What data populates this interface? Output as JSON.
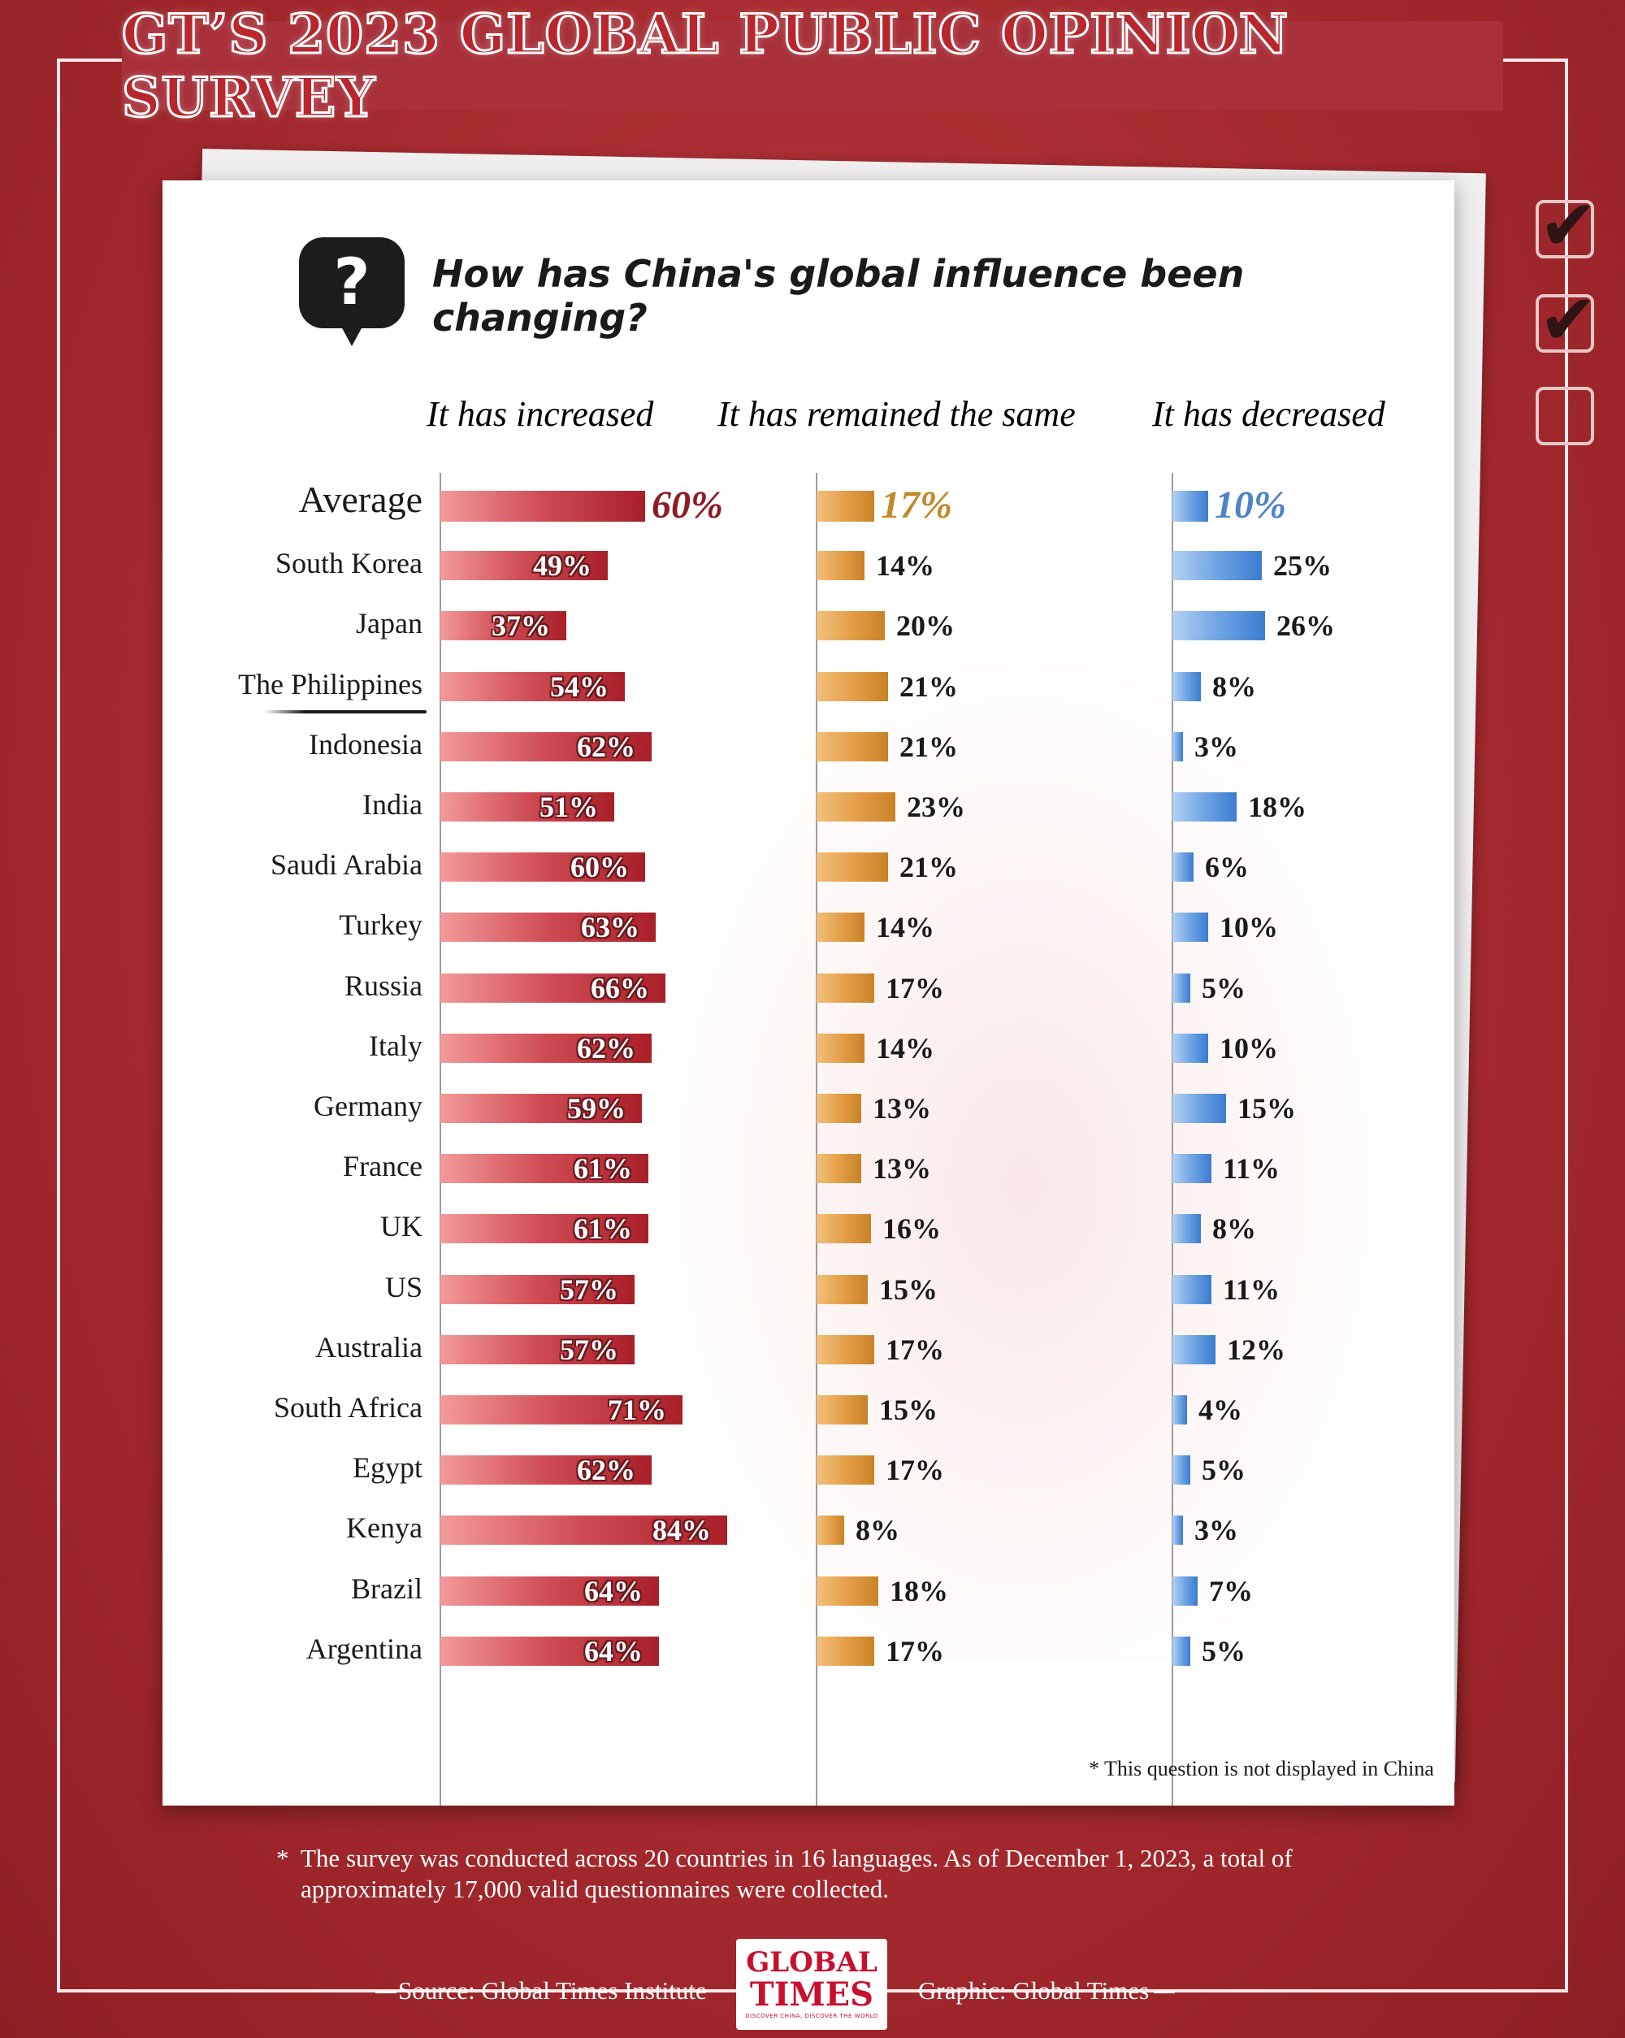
{
  "header": {
    "title": "GT’S 2023 GLOBAL PUBLIC OPINION SURVEY"
  },
  "question": {
    "icon": "question-mark-icon",
    "text": "How has China's global influence been changing?"
  },
  "checklist": [
    {
      "icon": "checked-box-icon",
      "checked": true,
      "glyph": "✔"
    },
    {
      "icon": "checked-box-icon",
      "checked": true,
      "glyph": "✔"
    },
    {
      "icon": "empty-box-icon",
      "checked": false,
      "glyph": ""
    }
  ],
  "columns": [
    {
      "key": "increased",
      "label": "It has increased",
      "color": "#b8262e"
    },
    {
      "key": "same",
      "label": "It has remained the same",
      "color": "#c08a2a"
    },
    {
      "key": "decreased",
      "label": "It has decreased",
      "color": "#5b8fd6"
    }
  ],
  "chart_data": {
    "type": "bar",
    "orientation": "horizontal",
    "unit": "%",
    "categories": [
      "Average",
      "South Korea",
      "Japan",
      "The Philippines",
      "Indonesia",
      "India",
      "Saudi Arabia",
      "Turkey",
      "Russia",
      "Italy",
      "Germany",
      "France",
      "UK",
      "US",
      "Australia",
      "South Africa",
      "Egypt",
      "Kenya",
      "Brazil",
      "Argentina"
    ],
    "series": [
      {
        "name": "It has increased",
        "values": [
          60,
          49,
          37,
          54,
          62,
          51,
          60,
          63,
          66,
          62,
          59,
          61,
          61,
          57,
          57,
          71,
          62,
          84,
          64,
          64
        ],
        "labels": [
          "60%",
          "49%",
          "37%",
          "54%",
          "62%",
          "51%",
          "60%",
          "63%",
          "66%",
          "62%",
          "59%",
          "61%",
          "61%",
          "57%",
          "57%",
          "71%",
          "62%",
          "84%",
          "64%",
          "64%"
        ]
      },
      {
        "name": "It has remained the same",
        "values": [
          17,
          14,
          20,
          21,
          21,
          23,
          21,
          14,
          17,
          14,
          13,
          13,
          16,
          15,
          17,
          15,
          17,
          8,
          18,
          17
        ],
        "labels": [
          "17%",
          "14%",
          "20%",
          "21%",
          "21%",
          "23%",
          "21%",
          "14%",
          "17%",
          "14%",
          "13%",
          "13%",
          "16%",
          "15%",
          "17%",
          "15%",
          "17%",
          "8%",
          "18%",
          "17%"
        ]
      },
      {
        "name": "It has decreased",
        "values": [
          10,
          25,
          26,
          8,
          3,
          18,
          6,
          10,
          5,
          10,
          15,
          11,
          8,
          11,
          12,
          4,
          5,
          3,
          7,
          5
        ],
        "labels": [
          "10%",
          "25%",
          "26%",
          "8%",
          "3%",
          "18%",
          "6%",
          "10%",
          "5%",
          "10%",
          "15%",
          "11%",
          "8%",
          "11%",
          "12%",
          "4%",
          "5%",
          "3%",
          "7%",
          "5%"
        ]
      }
    ]
  },
  "note": "* This question is not displayed in China",
  "footnote": {
    "star": "*",
    "text": "The survey was conducted across 20 countries in 16 languages. As of  December 1, 2023, a total of approximately 17,000 valid questionnaires were collected."
  },
  "footer": {
    "source": "Source: Global Times Institute",
    "graphic": "Graphic: Global Times",
    "logo": {
      "line1": "GLOBAL",
      "line2": "TIMES",
      "tagline": "DISCOVER CHINA, DISCOVER THE WORLD"
    }
  }
}
